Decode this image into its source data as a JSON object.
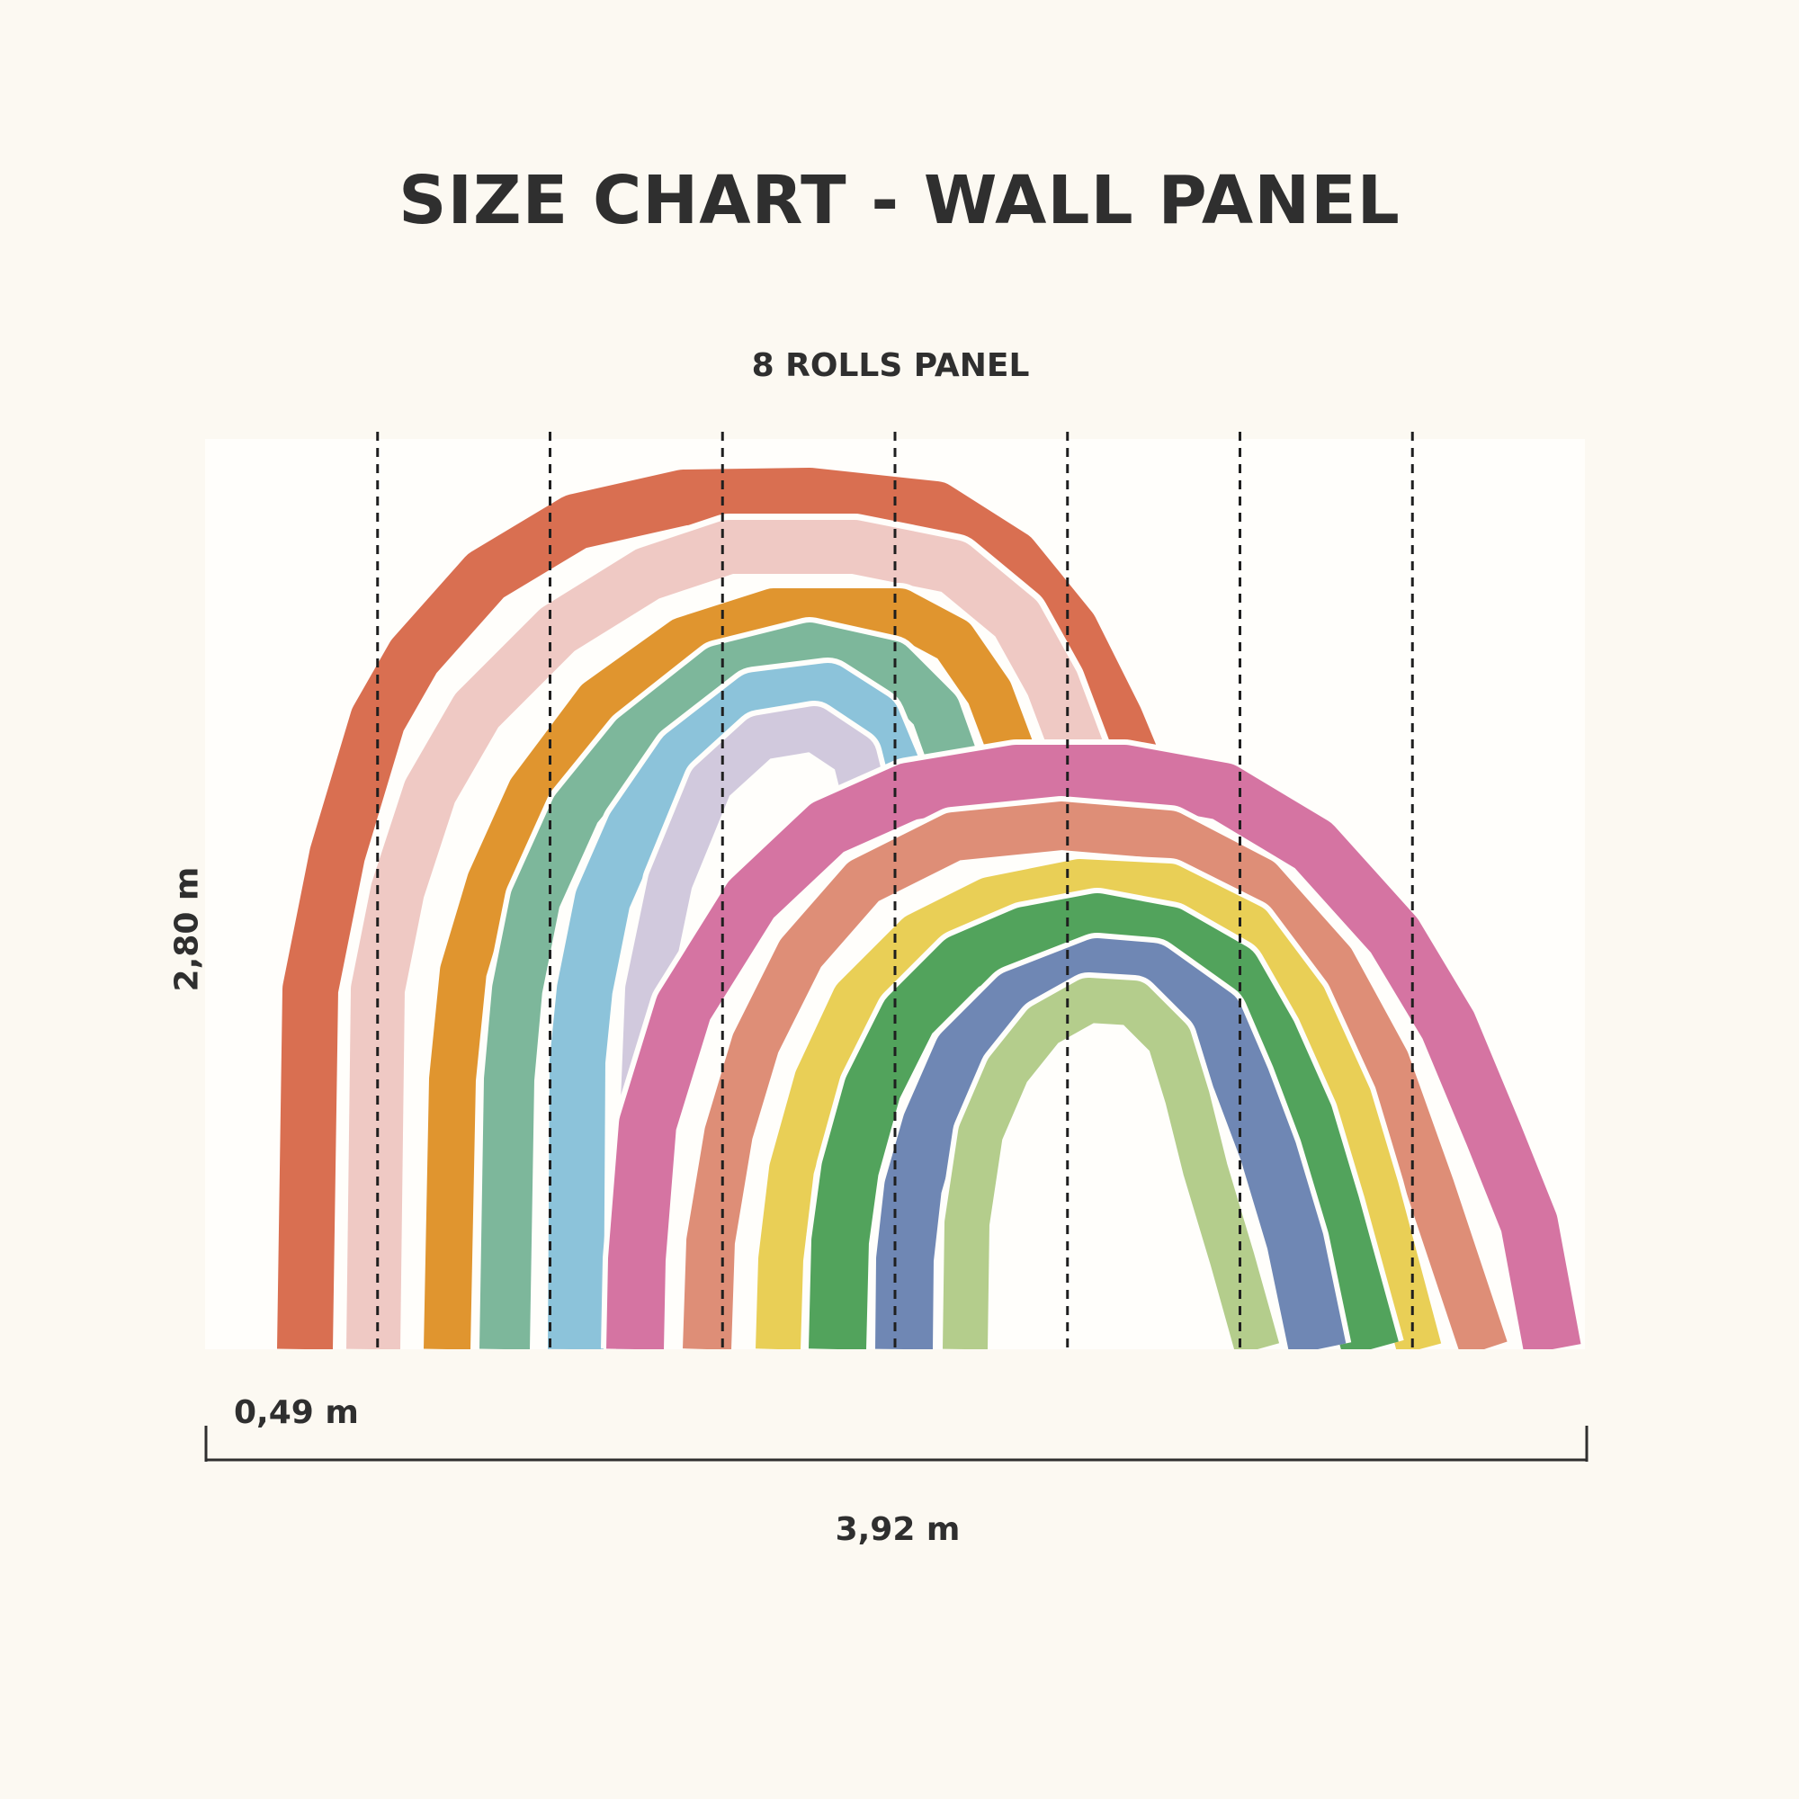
{
  "title": "SIZE CHART - WALL PANEL",
  "subtitle": "8 ROLLS PANEL",
  "height_label": "2,80 m",
  "roll_width_label": "0,49 m",
  "total_width_label": "3,92 m",
  "roll_count": 8,
  "colors": {
    "background": "#fcf9f2",
    "panel": "#fffefb",
    "text": "#2f2f2f",
    "left_rainbow": [
      "#d96f51",
      "#efc9c4",
      "#e0952f",
      "#7db79b",
      "#8cc3da",
      "#d1c9dd"
    ],
    "right_rainbow": [
      "#d574a2",
      "#de8e77",
      "#e9cf56",
      "#52a35c",
      "#6f87b4",
      "#b4cd8c"
    ]
  }
}
